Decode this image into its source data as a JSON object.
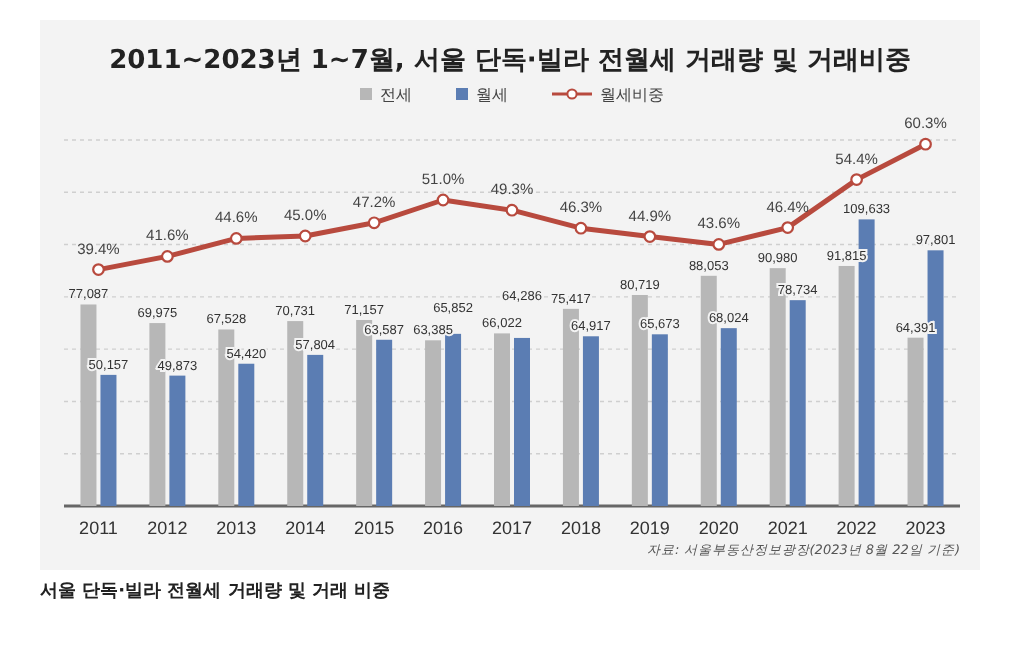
{
  "chart_data": {
    "type": "bar",
    "title": "2011~2023년 1~7월, 서울 단독·빌라 전월세 거래량 및 거래비중",
    "categories": [
      "2011",
      "2012",
      "2013",
      "2014",
      "2015",
      "2016",
      "2017",
      "2018",
      "2019",
      "2020",
      "2021",
      "2022",
      "2023"
    ],
    "series": [
      {
        "name": "전세",
        "color": "#b7b7b7",
        "values": [
          77087,
          69975,
          67528,
          70731,
          71157,
          63385,
          66022,
          75417,
          80719,
          88053,
          90980,
          91815,
          64391
        ],
        "value_labels": [
          "77,087",
          "69,975",
          "67,528",
          "70,731",
          "71,157",
          "63,385",
          "66,022",
          "75,417",
          "80,719",
          "88,053",
          "90,980",
          "91,815",
          "64,391"
        ]
      },
      {
        "name": "월세",
        "color": "#5b7db3",
        "values": [
          50157,
          49873,
          54420,
          57804,
          63587,
          65852,
          64286,
          64917,
          65673,
          68024,
          78734,
          109633,
          97801
        ],
        "value_labels": [
          "50,157",
          "49,873",
          "54,420",
          "57,804",
          "63,587",
          "65,852",
          "64,286",
          "64,917",
          "65,673",
          "68,024",
          "78,734",
          "109,633",
          "97,801"
        ]
      },
      {
        "name": "월세비중",
        "type": "line",
        "axis": "y2",
        "color": "#b84a3e",
        "marker": "circle",
        "values": [
          39.4,
          41.6,
          44.6,
          45.0,
          47.2,
          51.0,
          49.3,
          46.3,
          44.9,
          43.6,
          46.4,
          54.4,
          60.3
        ],
        "value_labels": [
          "39.4%",
          "41.6%",
          "44.6%",
          "45.0%",
          "47.2%",
          "51.0%",
          "49.3%",
          "46.3%",
          "44.9%",
          "43.6%",
          "46.4%",
          "54.4%",
          "60.3%"
        ]
      }
    ],
    "ylim": [
      0,
      140000
    ],
    "yticks": [
      {
        "value": 0,
        "label": null
      },
      {
        "value": 20000,
        "label": null
      },
      {
        "value": 40000,
        "label": null
      },
      {
        "value": 60000,
        "label": null
      },
      {
        "value": 80000,
        "label": null
      },
      {
        "value": 100000,
        "label": null
      },
      {
        "value": 120000,
        "label": null
      },
      {
        "value": 140000,
        "label": null
      }
    ],
    "y2lim": [
      0,
      61
    ],
    "tick_labels": "x",
    "grid": "y",
    "legend": "top",
    "annotations": [
      "자료: 서울부동산정보광장(2023년 8월 22일 기준)",
      "서울 단독·빌라 전월세 거래량 및 거래 비중"
    ]
  }
}
